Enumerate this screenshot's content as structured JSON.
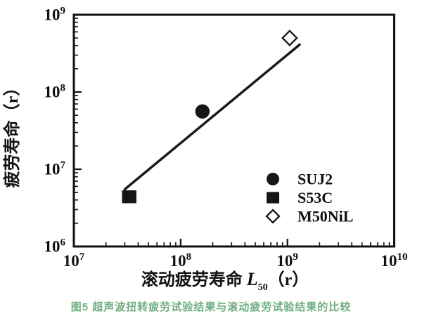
{
  "caption": {
    "text": "图5 超声波扭转疲劳试验结果与滚动疲劳试验结果的比较",
    "color": "#6fae80"
  },
  "colors": {
    "axis": "#111111",
    "marker": "#161616",
    "trend_line": "#1a1a1a",
    "background": "#ffffff"
  },
  "chart_data": {
    "type": "scatter",
    "title": "",
    "xlabel": {
      "prefix": "滚动疲劳寿命 ",
      "symbol": "L",
      "subscript": "50",
      "suffix": "（r）"
    },
    "ylabel": "疲劳寿命（r）",
    "x_scale": "log",
    "y_scale": "log",
    "xlim": [
      10000000.0,
      10000000000.0
    ],
    "ylim": [
      1000000.0,
      1000000000.0
    ],
    "x_tick_base": "10",
    "x_tick_exponents": [
      "7",
      "8",
      "9",
      "10"
    ],
    "y_tick_base": "10",
    "y_tick_exponents": [
      "6",
      "7",
      "8",
      "9"
    ],
    "grid": false,
    "legend_position": "lower-right",
    "series": [
      {
        "name": "SUJ2",
        "marker": "filled-circle",
        "points": [
          [
            160000000.0,
            56000000.0
          ]
        ]
      },
      {
        "name": "S53C",
        "marker": "filled-square",
        "points": [
          [
            33000000.0,
            4400000.0
          ]
        ]
      },
      {
        "name": "M50NiL",
        "marker": "open-diamond",
        "points": [
          [
            1050000000.0,
            500000000.0
          ]
        ]
      }
    ],
    "trend_line": {
      "from": [
        30000000.0,
        5500000.0
      ],
      "to": [
        1300000000.0,
        410000000.0
      ]
    }
  }
}
